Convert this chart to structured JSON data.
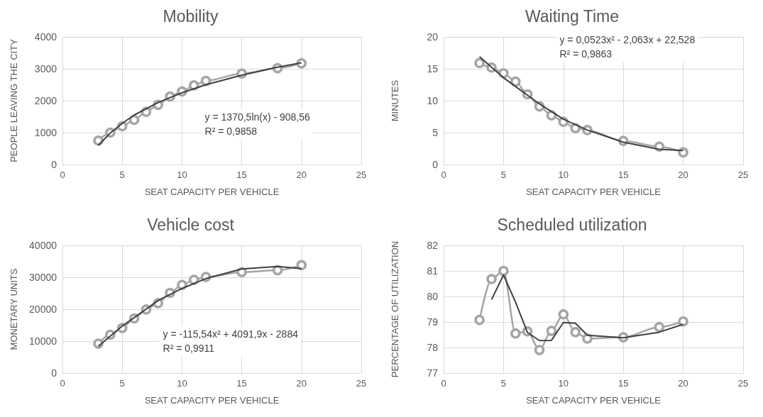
{
  "chart_data": [
    {
      "type": "line",
      "title": "Mobility",
      "xlabel": "SEAT CAPACITY PER VEHICLE",
      "ylabel": "PEOPLE LEAVING THE CITY",
      "xlim": [
        0,
        25
      ],
      "xticks": [
        0,
        5,
        10,
        15,
        20,
        25
      ],
      "ylim": [
        0,
        4000
      ],
      "yticks": [
        0,
        1000,
        2000,
        3000,
        4000
      ],
      "grid": true,
      "marker": "circle",
      "annotations": [
        "y = 1370,5ln(x) - 908,56",
        "R² = 0,9858"
      ],
      "series": [
        {
          "color": "#a5a5a5",
          "x": [
            3,
            4,
            5,
            6,
            7,
            8,
            9,
            10,
            11,
            12,
            15,
            18,
            20
          ],
          "values": [
            750,
            1000,
            1200,
            1400,
            1650,
            1870,
            2130,
            2290,
            2480,
            2620,
            2850,
            3020,
            3170
          ]
        },
        {
          "type": "line",
          "color": "#404040",
          "marker": "none",
          "x": [
            3,
            4,
            5,
            6,
            8,
            10,
            12,
            15,
            18,
            20
          ],
          "values": [
            600,
            990,
            1290,
            1550,
            1940,
            2250,
            2500,
            2800,
            3050,
            3190
          ]
        }
      ]
    },
    {
      "type": "line",
      "title": "Waiting Time",
      "xlabel": "SEAT CAPACITY PER VEHICLE",
      "ylabel": "MINUTES",
      "xlim": [
        0,
        25
      ],
      "xticks": [
        0,
        5,
        10,
        15,
        20,
        25
      ],
      "ylim": [
        0,
        20
      ],
      "yticks": [
        0,
        5,
        10,
        15,
        20
      ],
      "grid": true,
      "marker": "circle",
      "annotations": [
        "y = 0,0523x² - 2,063x + 22,528",
        "R² = 0,9863"
      ],
      "series": [
        {
          "color": "#a5a5a5",
          "x": [
            3,
            4,
            5,
            6,
            7,
            8,
            9,
            10,
            11,
            12,
            15,
            18,
            20
          ],
          "values": [
            15.9,
            15.2,
            14.3,
            13.0,
            11.0,
            9.1,
            7.7,
            6.7,
            5.7,
            5.4,
            3.7,
            2.8,
            1.9
          ]
        },
        {
          "type": "line",
          "color": "#404040",
          "marker": "none",
          "x": [
            3,
            5,
            8,
            10,
            12,
            15,
            18,
            20
          ],
          "values": [
            16.9,
            13.6,
            9.5,
            7.1,
            5.4,
            3.5,
            2.4,
            2.2
          ]
        }
      ]
    },
    {
      "type": "line",
      "title": "Vehicle cost",
      "xlabel": "SEAT CAPACITY PER VEHICLE",
      "ylabel": "MONETARY UNITS",
      "xlim": [
        0,
        25
      ],
      "xticks": [
        0,
        5,
        10,
        15,
        20,
        25
      ],
      "ylim": [
        0,
        40000
      ],
      "yticks": [
        0,
        10000,
        20000,
        30000,
        40000
      ],
      "grid": true,
      "marker": "circle",
      "annotations": [
        "y = -115,54x² + 4091,9x - 2884",
        "R² = 0,9911"
      ],
      "series": [
        {
          "color": "#a5a5a5",
          "x": [
            3,
            4,
            5,
            6,
            7,
            8,
            9,
            10,
            11,
            12,
            15,
            18,
            20
          ],
          "values": [
            9200,
            12000,
            14100,
            17100,
            19900,
            21900,
            25100,
            27600,
            29200,
            30100,
            31600,
            32200,
            33800
          ]
        },
        {
          "type": "line",
          "color": "#404040",
          "marker": "none",
          "x": [
            3,
            5,
            8,
            10,
            12,
            15,
            18,
            20
          ],
          "values": [
            8400,
            14700,
            22700,
            26500,
            29600,
            32600,
            33400,
            32700
          ]
        }
      ]
    },
    {
      "type": "line",
      "title": "Scheduled utilization",
      "xlabel": "SEAT CAPACITY PER VEHICLE",
      "ylabel": "PERCENTAGE OF UTILIZATION",
      "xlim": [
        0,
        25
      ],
      "xticks": [
        0,
        5,
        10,
        15,
        20,
        25
      ],
      "ylim": [
        77,
        82
      ],
      "yticks": [
        77,
        78,
        79,
        80,
        81,
        82
      ],
      "grid": true,
      "marker": "circle",
      "series": [
        {
          "color": "#a5a5a5",
          "x": [
            3,
            4,
            5,
            6,
            7,
            8,
            9,
            10,
            11,
            12,
            15,
            18,
            20
          ],
          "values": [
            79.08,
            80.68,
            81.0,
            78.55,
            78.63,
            77.9,
            78.65,
            79.3,
            78.6,
            78.35,
            78.4,
            78.8,
            79.02
          ]
        },
        {
          "type": "line",
          "color": "#404040",
          "marker": "none",
          "x": [
            4,
            5,
            6,
            7,
            8,
            9,
            10,
            11,
            12,
            15,
            18,
            20
          ],
          "values": [
            79.88,
            80.84,
            79.78,
            78.59,
            78.27,
            78.28,
            78.98,
            78.95,
            78.48,
            78.38,
            78.6,
            78.91
          ]
        }
      ]
    }
  ]
}
